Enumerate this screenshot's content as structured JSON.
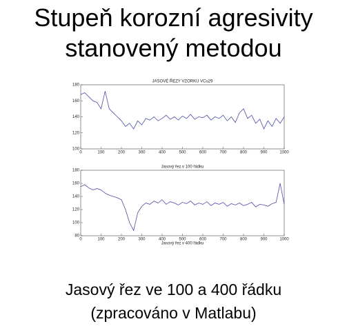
{
  "title": [
    "Stupeň korozní agresivity",
    "stanovený metodou"
  ],
  "caption": [
    "Jasový řez ve 100 a 400 řádku",
    "(zpracováno v Matlabu)"
  ],
  "chart_data": [
    {
      "type": "line",
      "title": "JASOVÉ ŘEZY VZORKU VCu29",
      "color": "#4a4aa8",
      "x": [
        0,
        20,
        40,
        60,
        80,
        100,
        120,
        140,
        160,
        180,
        200,
        220,
        240,
        260,
        280,
        300,
        320,
        340,
        360,
        380,
        400,
        420,
        440,
        460,
        480,
        500,
        520,
        540,
        560,
        580,
        600,
        620,
        640,
        660,
        680,
        700,
        720,
        740,
        760,
        780,
        800,
        820,
        840,
        860,
        880,
        900,
        920,
        940,
        960,
        980,
        1000
      ],
      "values": [
        168,
        170,
        165,
        160,
        158,
        150,
        172,
        150,
        145,
        140,
        135,
        128,
        132,
        125,
        135,
        130,
        138,
        136,
        140,
        135,
        138,
        142,
        137,
        140,
        136,
        141,
        138,
        143,
        137,
        140,
        139,
        142,
        136,
        140,
        138,
        142,
        135,
        140,
        133,
        145,
        150,
        138,
        142,
        132,
        137,
        125,
        135,
        128,
        138,
        132,
        140
      ],
      "xlim": [
        0,
        1000
      ],
      "xticks": [
        0,
        100,
        200,
        300,
        400,
        500,
        600,
        700,
        800,
        900,
        1000
      ],
      "ylim": [
        100,
        180
      ],
      "yticks": [
        100,
        120,
        140,
        160,
        180
      ]
    },
    {
      "type": "line",
      "title": "Jasový řez v 100 řádku",
      "xlabel": "Jasový řez v 400 řádku",
      "color": "#4a4aa8",
      "x": [
        0,
        20,
        40,
        60,
        80,
        100,
        120,
        140,
        160,
        180,
        200,
        220,
        240,
        260,
        280,
        300,
        320,
        340,
        360,
        380,
        400,
        420,
        440,
        460,
        480,
        500,
        520,
        540,
        560,
        580,
        600,
        620,
        640,
        660,
        680,
        700,
        720,
        740,
        760,
        780,
        800,
        820,
        840,
        860,
        880,
        900,
        920,
        940,
        960,
        980,
        1000
      ],
      "values": [
        155,
        158,
        153,
        150,
        152,
        150,
        145,
        142,
        140,
        138,
        135,
        120,
        100,
        88,
        115,
        125,
        130,
        128,
        133,
        130,
        135,
        128,
        132,
        130,
        127,
        131,
        129,
        133,
        127,
        130,
        128,
        132,
        126,
        130,
        128,
        131,
        125,
        129,
        127,
        130,
        126,
        128,
        131,
        124,
        128,
        127,
        125,
        129,
        131,
        160,
        128
      ],
      "xlim": [
        0,
        1000
      ],
      "xticks": [
        0,
        100,
        200,
        300,
        400,
        500,
        600,
        700,
        800,
        900,
        1000
      ],
      "ylim": [
        80,
        180
      ],
      "yticks": [
        80,
        100,
        120,
        140,
        160,
        180
      ]
    }
  ]
}
